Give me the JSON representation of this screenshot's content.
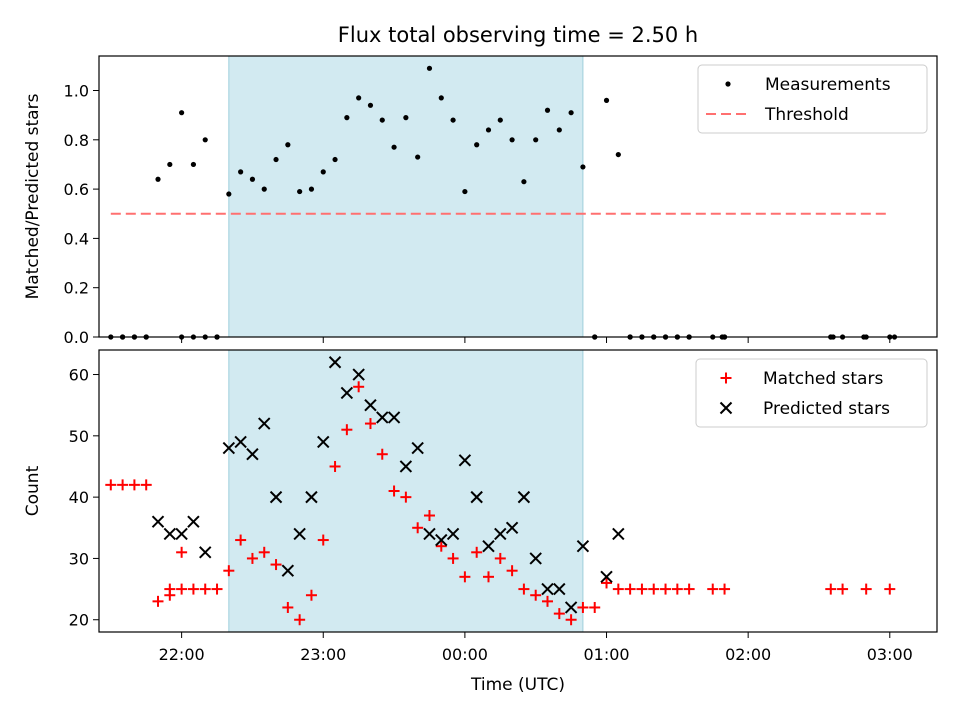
{
  "chart_data": [
    {
      "type": "scatter",
      "title": "Flux total observing time = 2.50 h",
      "xlabel": "",
      "ylabel": "Matched/Predicted stars",
      "ylim": [
        0,
        1.14
      ],
      "xlim": [
        "21:25",
        "03:20"
      ],
      "yticks": [
        0.0,
        0.2,
        0.4,
        0.6,
        0.8,
        1.0
      ],
      "ytick_labels": [
        "0.0",
        "0.2",
        "0.4",
        "0.6",
        "0.8",
        "1.0"
      ],
      "grid": false,
      "legend_position": "top-right",
      "shaded_interval": {
        "x": [
          "22:20",
          "00:50"
        ],
        "color": "#add8e6"
      },
      "series": [
        {
          "name": "Measurements",
          "style": "dot",
          "color": "#000000",
          "x": [
            "21:30",
            "21:35",
            "21:40",
            "21:45",
            "21:50",
            "21:55",
            "22:00",
            "22:05",
            "22:10",
            "22:15",
            "22:20",
            "22:25",
            "22:30",
            "22:35",
            "22:40",
            "22:45",
            "22:50",
            "22:55",
            "23:00",
            "23:05",
            "23:10",
            "23:15",
            "23:20",
            "23:25",
            "23:30",
            "23:35",
            "23:40",
            "23:45",
            "23:50",
            "23:55",
            "00:00",
            "00:05",
            "00:10",
            "00:15",
            "00:20",
            "00:25",
            "00:30",
            "00:35",
            "00:40",
            "00:45",
            "00:50",
            "00:55",
            "01:00",
            "01:05",
            "01:10",
            "01:15",
            "01:20",
            "01:25",
            "01:30",
            "01:35",
            "01:45",
            "01:50",
            "02:35",
            "02:40",
            "02:50",
            "03:00"
          ],
          "y": [
            0.0,
            0.0,
            0.0,
            0.0,
            0.64,
            0.7,
            0.91,
            0.7,
            0.8,
            0.0,
            0.58,
            0.67,
            0.64,
            0.6,
            0.72,
            0.78,
            0.59,
            0.6,
            0.67,
            0.72,
            0.89,
            0.97,
            0.94,
            0.88,
            0.77,
            0.89,
            0.73,
            1.09,
            0.97,
            0.88,
            0.59,
            0.78,
            0.84,
            0.88,
            0.8,
            0.63,
            0.8,
            0.92,
            0.84,
            0.91,
            0.69,
            0.0,
            0.96,
            0.74,
            0.0,
            0.0,
            0.0,
            0.0,
            0.0,
            0.0,
            0.0,
            0.0,
            0.0,
            0.0,
            0.0,
            0.0
          ],
          "extra_zero_points_x": [
            "21:35",
            "21:40",
            "21:45",
            "22:00",
            "22:05",
            "22:10",
            "22:15",
            "00:55",
            "01:10",
            "01:15",
            "01:20",
            "01:25",
            "01:30",
            "01:35",
            "01:50",
            "01:49",
            "02:35",
            "02:36",
            "02:49",
            "03:02"
          ]
        },
        {
          "name": "Threshold",
          "style": "dashed-line",
          "color": "#ff7070",
          "x": [
            "21:30",
            "03:00"
          ],
          "y": [
            0.5,
            0.5
          ]
        }
      ]
    },
    {
      "type": "scatter",
      "title": "",
      "xlabel": "Time (UTC)",
      "ylabel": "Count",
      "ylim": [
        18,
        64
      ],
      "xlim": [
        "21:25",
        "03:20"
      ],
      "yticks": [
        20,
        30,
        40,
        50,
        60
      ],
      "ytick_labels": [
        "20",
        "30",
        "40",
        "50",
        "60"
      ],
      "xticks": [
        "22:00",
        "23:00",
        "00:00",
        "01:00",
        "02:00",
        "03:00"
      ],
      "xtick_labels": [
        "22:00",
        "23:00",
        "00:00",
        "01:00",
        "02:00",
        "03:00"
      ],
      "grid": false,
      "legend_position": "top-right",
      "shaded_interval": {
        "x": [
          "22:20",
          "00:50"
        ],
        "color": "#add8e6"
      },
      "series": [
        {
          "name": "Matched stars",
          "style": "plus",
          "color": "#ff0000",
          "x": [
            "21:30",
            "21:35",
            "21:40",
            "21:45",
            "21:50",
            "21:55",
            "22:00",
            "21:55",
            "22:00",
            "22:05",
            "22:10",
            "22:15",
            "22:20",
            "22:25",
            "22:30",
            "22:35",
            "22:40",
            "22:45",
            "22:50",
            "22:55",
            "23:00",
            "23:05",
            "23:10",
            "23:15",
            "23:20",
            "23:25",
            "23:30",
            "23:35",
            "23:40",
            "23:45",
            "23:50",
            "23:55",
            "00:00",
            "00:05",
            "00:10",
            "00:15",
            "00:20",
            "00:25",
            "00:30",
            "00:35",
            "00:40",
            "00:45",
            "00:50",
            "00:55",
            "01:00",
            "01:05",
            "01:10",
            "01:15",
            "01:20",
            "01:25",
            "01:30",
            "01:35",
            "01:45",
            "01:50",
            "02:35",
            "02:40",
            "02:50",
            "03:00"
          ],
          "y": [
            42,
            42,
            42,
            42,
            23,
            24,
            31,
            25,
            25,
            25,
            25,
            25,
            28,
            33,
            30,
            31,
            29,
            22,
            20,
            24,
            33,
            45,
            51,
            58,
            52,
            47,
            41,
            40,
            35,
            37,
            32,
            30,
            27,
            31,
            27,
            30,
            28,
            25,
            24,
            23,
            21,
            20,
            22,
            22,
            26,
            25,
            25,
            25,
            25,
            25,
            25,
            25,
            25,
            25,
            25,
            25,
            25,
            25
          ]
        },
        {
          "name": "Predicted stars",
          "style": "x",
          "color": "#000000",
          "x": [
            "21:50",
            "21:55",
            "22:00",
            "22:05",
            "22:10",
            "22:20",
            "22:25",
            "22:30",
            "22:35",
            "22:40",
            "22:45",
            "22:50",
            "22:55",
            "23:00",
            "23:05",
            "23:10",
            "23:15",
            "23:20",
            "23:25",
            "23:30",
            "23:35",
            "23:40",
            "23:45",
            "23:50",
            "23:55",
            "00:00",
            "00:05",
            "00:10",
            "00:15",
            "00:20",
            "00:25",
            "00:30",
            "00:35",
            "00:40",
            "00:45",
            "00:50",
            "01:00",
            "01:05"
          ],
          "y": [
            36,
            34,
            34,
            36,
            31,
            48,
            49,
            47,
            52,
            40,
            28,
            34,
            40,
            49,
            62,
            57,
            60,
            55,
            53,
            53,
            45,
            48,
            34,
            33,
            34,
            46,
            40,
            32,
            34,
            35,
            40,
            30,
            25,
            25,
            22,
            32,
            27,
            34
          ]
        }
      ]
    }
  ]
}
